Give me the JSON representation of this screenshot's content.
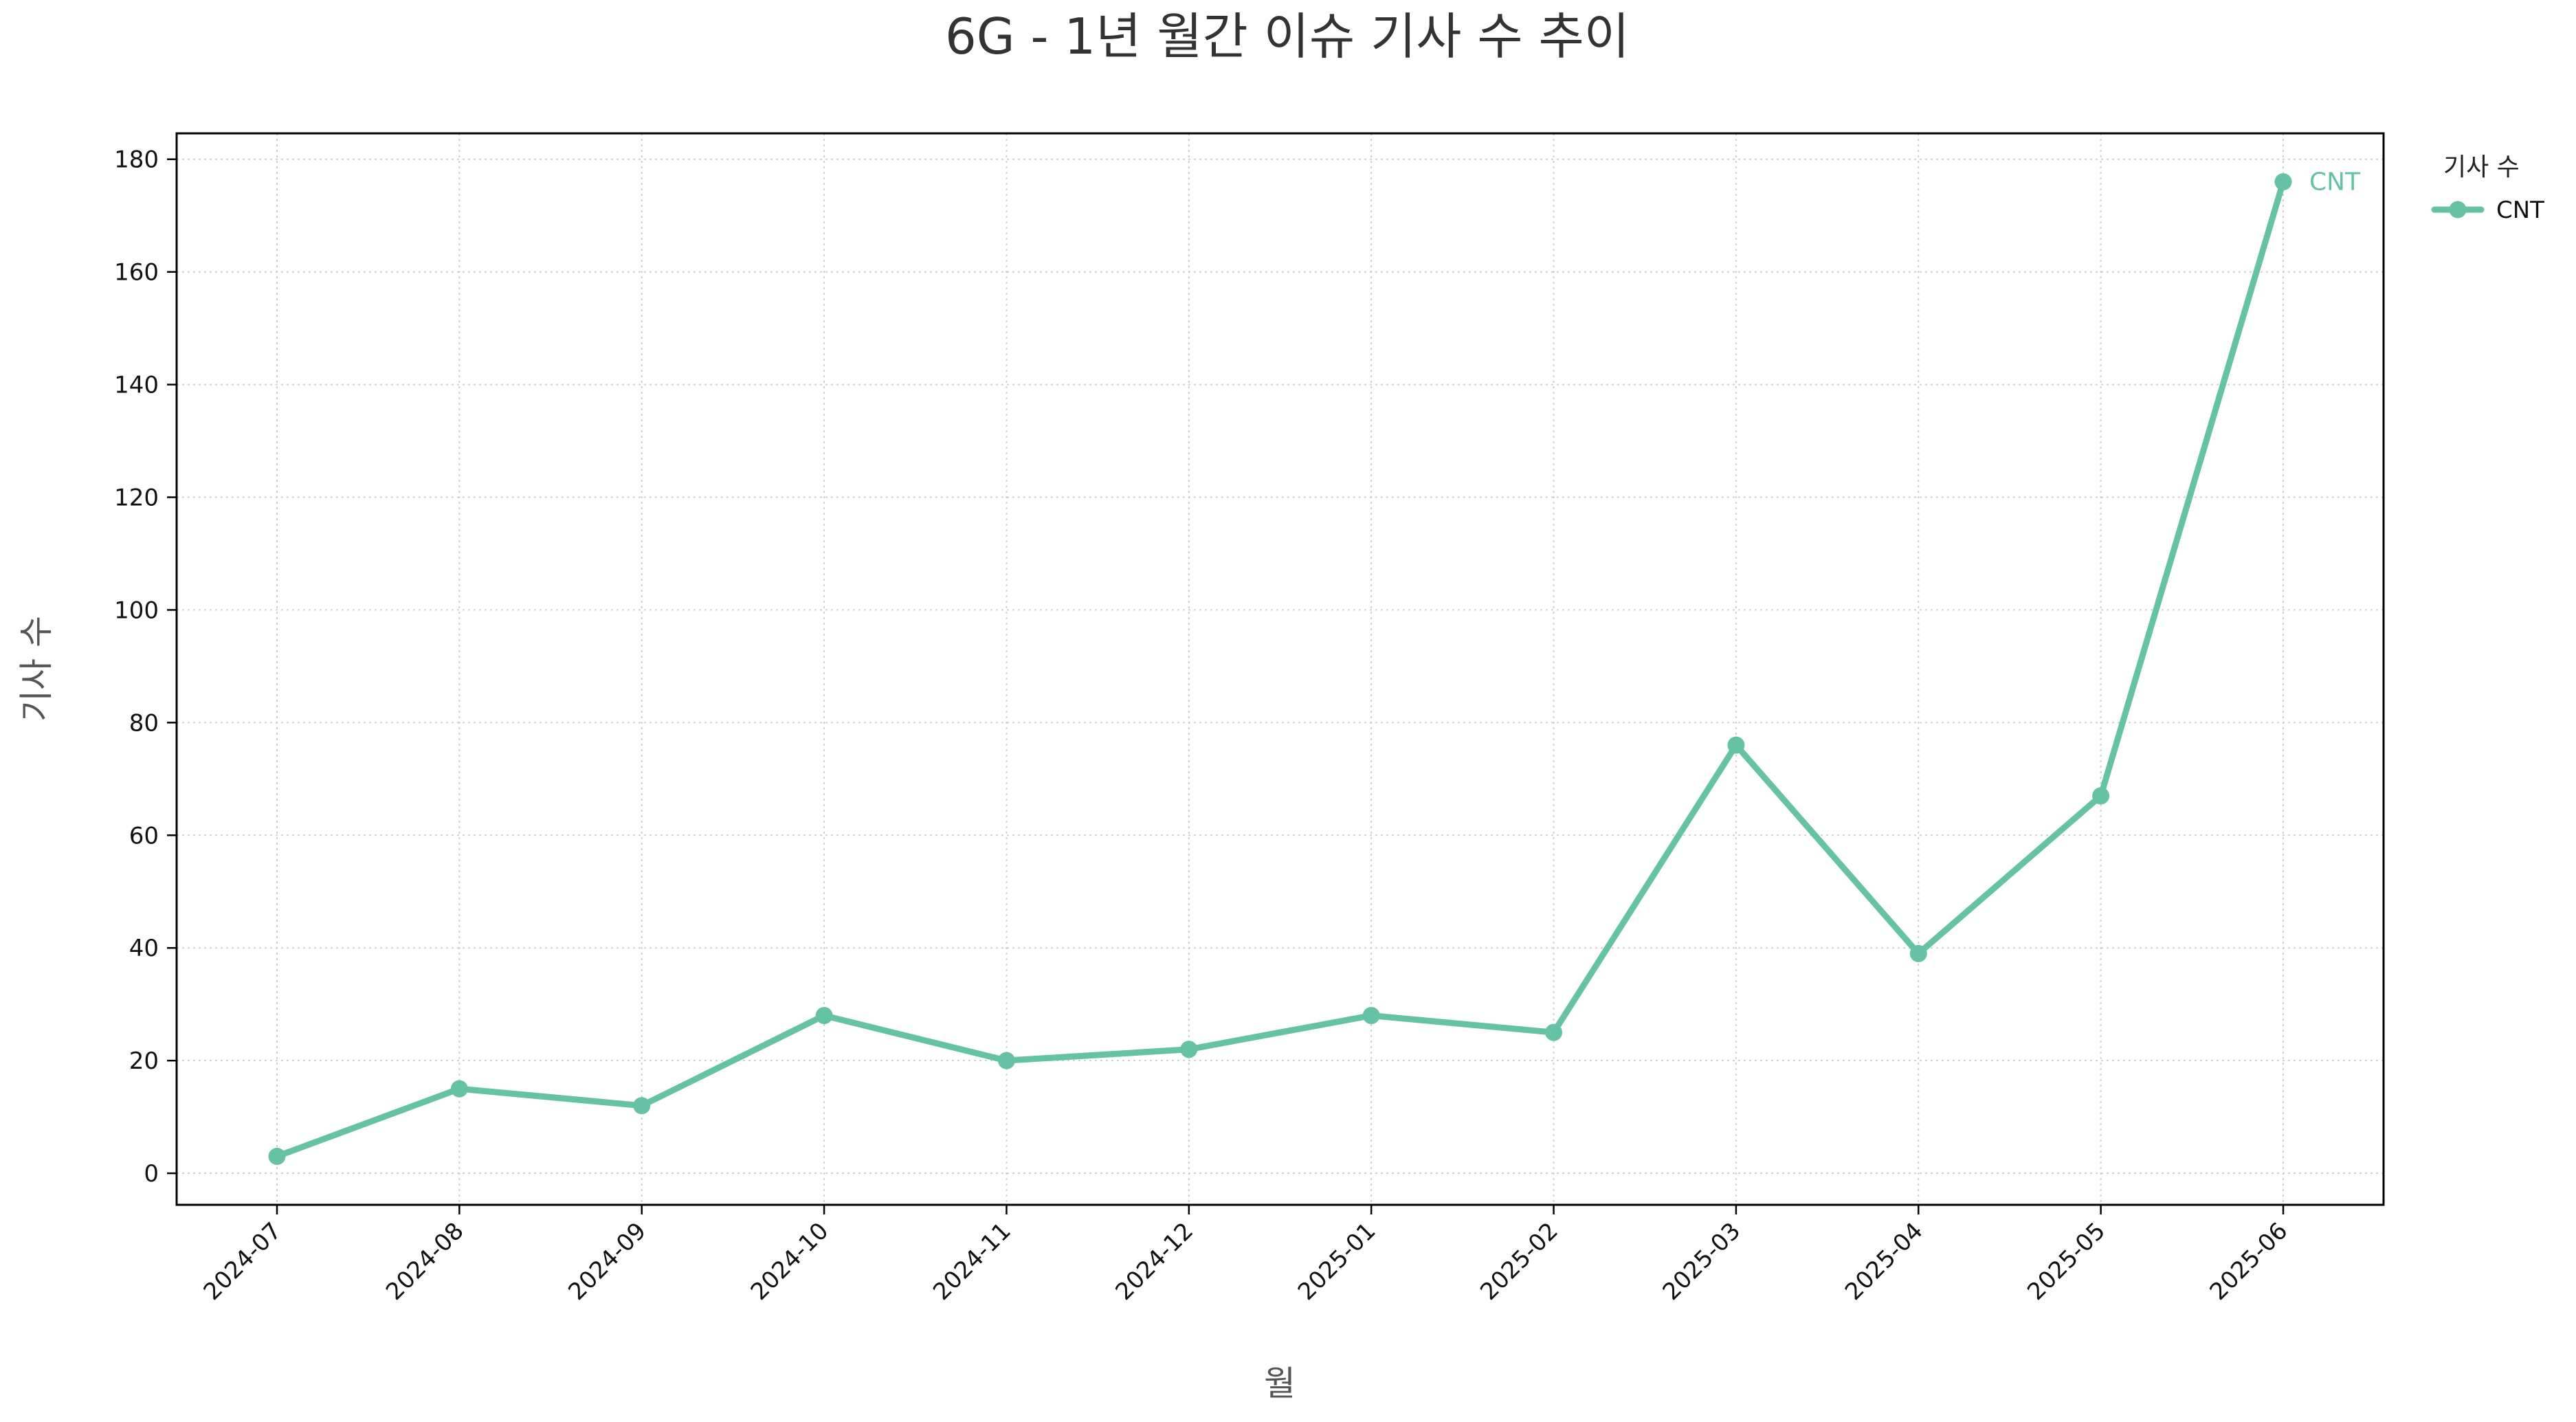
{
  "chart_data": {
    "type": "line",
    "title": "6G - 1년 월간 이슈 기사 수 추이",
    "xlabel": "월",
    "ylabel": "기사 수",
    "categories": [
      "2024-07",
      "2024-08",
      "2024-09",
      "2024-10",
      "2024-11",
      "2024-12",
      "2025-01",
      "2025-02",
      "2025-03",
      "2025-04",
      "2025-05",
      "2025-06"
    ],
    "series": [
      {
        "name": "CNT",
        "values": [
          3,
          15,
          12,
          28,
          20,
          22,
          28,
          25,
          76,
          39,
          67,
          176
        ],
        "color": "#66c2a5"
      }
    ],
    "yticks": [
      0,
      20,
      40,
      60,
      80,
      100,
      120,
      140,
      160,
      180
    ],
    "ylim": [
      -5.6,
      184.6
    ],
    "grid": true,
    "legend": {
      "title": "기사 수",
      "placement": "outside top-right",
      "entries": [
        "CNT"
      ]
    },
    "end_label": "CNT"
  }
}
